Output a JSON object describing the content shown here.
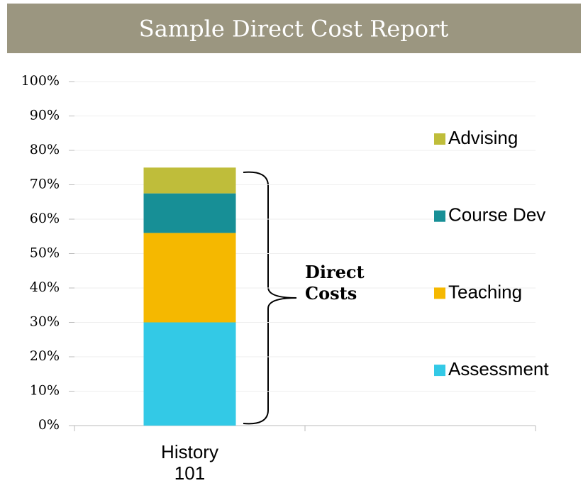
{
  "chart_data": {
    "type": "stacked_bar",
    "title": "Sample Direct Cost Report",
    "categories": [
      "History 101",
      null
    ],
    "series": [
      {
        "name": "Assessment",
        "color": "#33c9e6",
        "values": [
          30,
          null
        ]
      },
      {
        "name": "Teaching",
        "color": "#f5b800",
        "values": [
          26,
          null
        ]
      },
      {
        "name": "Course Dev",
        "color": "#178f96",
        "values": [
          11.5,
          null
        ]
      },
      {
        "name": "Advising",
        "color": "#bfbd3a",
        "values": [
          7.5,
          null
        ]
      }
    ],
    "ylim": [
      0,
      100
    ],
    "yticks": [
      {
        "value": 0,
        "label": "0%"
      },
      {
        "value": 10,
        "label": "10%"
      },
      {
        "value": 20,
        "label": "20%"
      },
      {
        "value": 30,
        "label": "30%"
      },
      {
        "value": 40,
        "label": "40%"
      },
      {
        "value": 50,
        "label": "50%"
      },
      {
        "value": 60,
        "label": "60%"
      },
      {
        "value": 70,
        "label": "70%"
      },
      {
        "value": 80,
        "label": "80%"
      },
      {
        "value": 90,
        "label": "90%"
      },
      {
        "value": 100,
        "label": "100%"
      }
    ],
    "grid": true,
    "legend": "right",
    "annotation": "Direct Costs"
  }
}
